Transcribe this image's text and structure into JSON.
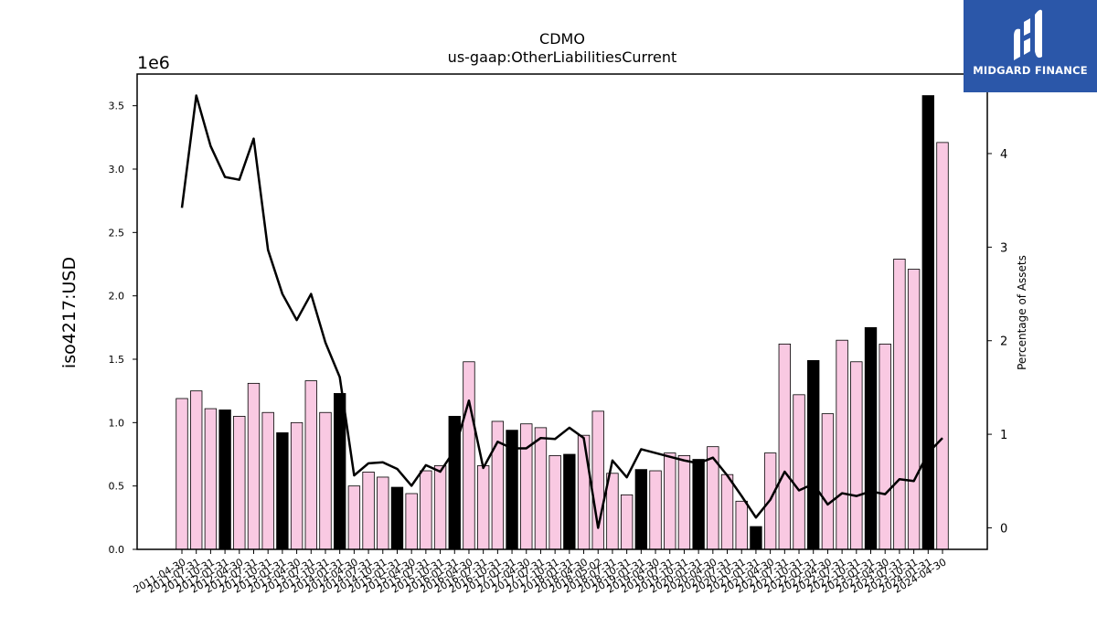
{
  "chart_data": {
    "type": "bar",
    "title": "CDMO",
    "subtitle": "us-gaap:OtherLiabilitiesCurrent",
    "ylabel": "iso4217:USD",
    "y_scale_label": "1e6",
    "y2label": "Percentage of Assets",
    "ylim": [
      0,
      3.75
    ],
    "y2lim": [
      -0.23,
      4.85
    ],
    "y_ticks": [
      0.0,
      0.5,
      1.0,
      1.5,
      2.0,
      2.5,
      3.0,
      3.5
    ],
    "y_tick_labels": [
      "0.0",
      "0.5",
      "1.0",
      "1.5",
      "2.0",
      "2.5",
      "3.0",
      "3.5"
    ],
    "y2_ticks": [
      0,
      1,
      2,
      3,
      4
    ],
    "y2_tick_labels": [
      "0",
      "1",
      "2",
      "3",
      "4"
    ],
    "grid": false,
    "categories": [
      "2011-04-30",
      "2011-07-31",
      "2011-10-31",
      "2012-01-31",
      "2012-04-30",
      "2012-07-31",
      "2012-10-31",
      "2013-01-31",
      "2013-04-30",
      "2013-07-31",
      "2013-10-31",
      "2014-01-31",
      "2014-04-30",
      "2014-07-31",
      "2014-10-31",
      "2015-01-31",
      "2015-04-30",
      "2015-07-31",
      "2015-10-31",
      "2016-01-31",
      "2016-04-30",
      "2016-07-31",
      "2016-10-31",
      "2017-01-31",
      "2017-04-30",
      "2017-07-31",
      "2017-10-31",
      "2018-01-31",
      "2018-04-30",
      "2018-05-02",
      "2018-07-31",
      "2018-10-31",
      "2019-01-31",
      "2019-04-30",
      "2019-07-31",
      "2019-10-31",
      "2020-01-31",
      "2020-04-30",
      "2020-07-31",
      "2020-10-31",
      "2021-01-31",
      "2021-04-30",
      "2021-07-31",
      "2021-10-31",
      "2022-01-31",
      "2022-04-30",
      "2022-07-31",
      "2022-10-31",
      "2023-01-31",
      "2023-04-30",
      "2023-07-31",
      "2023-10-31",
      "2024-01-31",
      "2024-04-30"
    ],
    "series": [
      {
        "kind": "bar",
        "axis": "left",
        "values": [
          1.19,
          1.25,
          1.11,
          1.1,
          1.05,
          1.31,
          1.08,
          0.92,
          1.0,
          1.33,
          1.08,
          1.23,
          0.5,
          0.61,
          0.57,
          0.49,
          0.44,
          0.62,
          0.66,
          1.05,
          1.48,
          0.66,
          1.01,
          0.94,
          0.99,
          0.96,
          0.74,
          0.75,
          0.9,
          1.09,
          0.6,
          0.43,
          0.63,
          0.62,
          0.76,
          0.74,
          0.71,
          0.81,
          0.59,
          0.38,
          0.18,
          0.76,
          1.62,
          1.22,
          1.49,
          1.07,
          1.65,
          1.48,
          1.75,
          1.62,
          2.29,
          2.21,
          3.58,
          3.21
        ],
        "highlight": [
          false,
          false,
          false,
          true,
          false,
          false,
          false,
          true,
          false,
          false,
          false,
          true,
          false,
          false,
          false,
          true,
          false,
          false,
          false,
          true,
          false,
          false,
          false,
          true,
          false,
          false,
          false,
          true,
          false,
          false,
          false,
          false,
          true,
          false,
          false,
          false,
          true,
          false,
          false,
          false,
          true,
          false,
          false,
          false,
          true,
          false,
          false,
          false,
          true,
          false,
          false,
          false,
          true,
          false
        ],
        "color": "#f9c9e2",
        "highlight_color": "#000000"
      },
      {
        "kind": "line",
        "axis": "right",
        "values": [
          3.42,
          4.62,
          4.08,
          3.75,
          3.72,
          4.16,
          2.97,
          2.5,
          2.22,
          2.5,
          1.98,
          1.61,
          0.56,
          0.69,
          0.7,
          0.63,
          0.45,
          0.67,
          0.6,
          0.83,
          1.36,
          0.64,
          0.92,
          0.85,
          0.85,
          0.96,
          0.95,
          1.07,
          0.96,
          0.0,
          0.72,
          0.54,
          0.84,
          0.8,
          0.76,
          0.72,
          0.69,
          0.75,
          0.56,
          0.34,
          0.11,
          0.3,
          0.6,
          0.4,
          0.47,
          0.25,
          0.37,
          0.34,
          0.39,
          0.36,
          0.52,
          0.5,
          0.8,
          0.96
        ],
        "color": "#000000"
      }
    ]
  },
  "logo": {
    "name": "MIDGARD FINANCE",
    "color": "#2b57a9"
  }
}
